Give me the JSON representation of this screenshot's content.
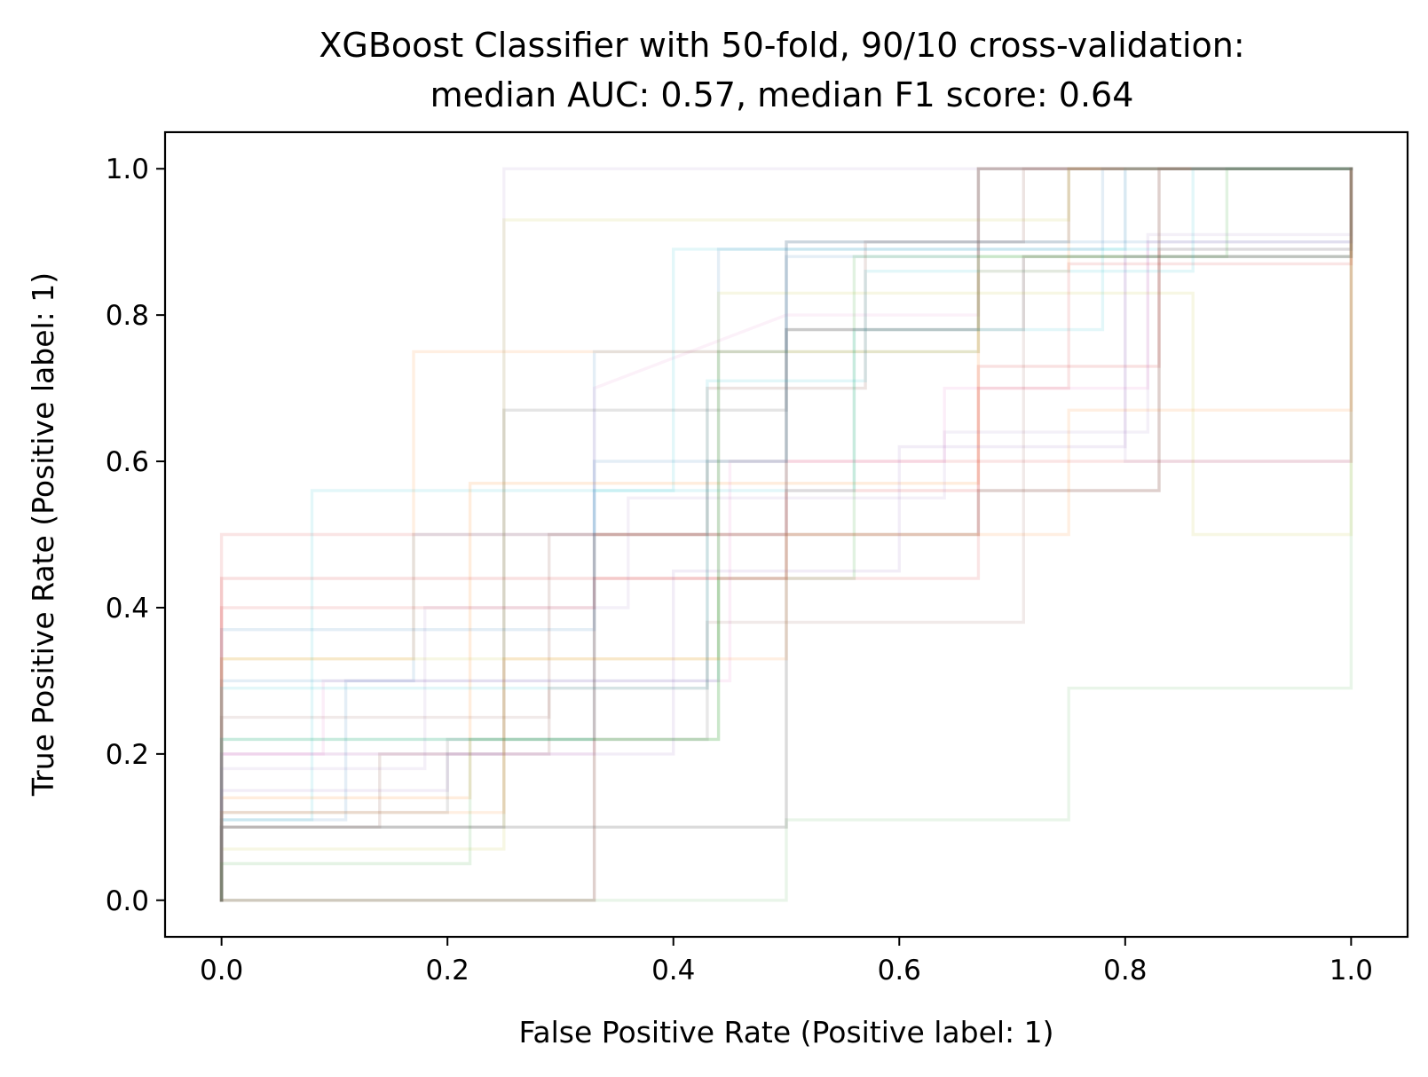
{
  "chart_data": {
    "type": "line",
    "title_lines": [
      "XGBoost Classifier with 50-fold, 90/10 cross-validation:",
      "median AUC: 0.57, median F1 score: 0.64"
    ],
    "xlabel": "False Positive Rate (Positive label: 1)",
    "ylabel": "True Positive Rate (Positive label: 1)",
    "xlim": [
      -0.05,
      1.05
    ],
    "ylim": [
      -0.05,
      1.05
    ],
    "xticks": [
      0.0,
      0.2,
      0.4,
      0.6,
      0.8,
      1.0
    ],
    "yticks": [
      0.0,
      0.2,
      0.4,
      0.6,
      0.8,
      1.0
    ],
    "xtick_labels": [
      "0.0",
      "0.2",
      "0.4",
      "0.6",
      "0.8",
      "1.0"
    ],
    "ytick_labels": [
      "0.0",
      "0.2",
      "0.4",
      "0.6",
      "0.8",
      "1.0"
    ],
    "grid": false,
    "legend": "none",
    "series": [
      {
        "color": "#1f77b4",
        "opacity": 0.12,
        "x": [
          0,
          0,
          0.17,
          0.17,
          0.33,
          0.33,
          0.5,
          0.5,
          0.67,
          0.67,
          1,
          1
        ],
        "y": [
          0,
          0.3,
          0.3,
          0.5,
          0.5,
          0.75,
          0.75,
          0.88,
          0.88,
          1,
          1,
          1
        ]
      },
      {
        "color": "#ff7f0e",
        "opacity": 0.12,
        "x": [
          0,
          0,
          0.17,
          0.17,
          0.2,
          0.2,
          0.67,
          0.67,
          0.75,
          0.75,
          1,
          1
        ],
        "y": [
          0,
          0.33,
          0.33,
          0.75,
          0.75,
          0.75,
          0.75,
          0.86,
          0.86,
          1,
          1,
          1
        ]
      },
      {
        "color": "#2ca02c",
        "opacity": 0.1,
        "x": [
          0,
          0,
          0.5,
          0.5,
          0.75,
          0.75,
          1,
          1
        ],
        "y": [
          0,
          0,
          0,
          0.11,
          0.11,
          0.29,
          0.29,
          1
        ]
      },
      {
        "color": "#d62728",
        "opacity": 0.12,
        "x": [
          0,
          0,
          0.17,
          0.17,
          0.33,
          0.33,
          0.5,
          0.5,
          1,
          1
        ],
        "y": [
          0,
          0.5,
          0.5,
          0.5,
          0.5,
          0.5,
          0.5,
          0.6,
          0.6,
          1
        ]
      },
      {
        "color": "#9467bd",
        "opacity": 0.1,
        "x": [
          0,
          0,
          0.25,
          0.25,
          0.5,
          0.5,
          0.8,
          0.8,
          1,
          1
        ],
        "y": [
          0,
          0.2,
          0.2,
          1,
          1,
          1,
          1,
          0.6,
          0.6,
          1
        ]
      },
      {
        "color": "#8c564b",
        "opacity": 0.16,
        "x": [
          0,
          0,
          0.14,
          0.14,
          0.29,
          0.29,
          0.43,
          0.43,
          0.57,
          0.57,
          0.71,
          0.71,
          1,
          1
        ],
        "y": [
          0,
          0.1,
          0.1,
          0.2,
          0.2,
          0.5,
          0.5,
          0.7,
          0.7,
          0.9,
          0.9,
          1,
          1,
          1
        ]
      },
      {
        "color": "#e377c2",
        "opacity": 0.1,
        "x": [
          0,
          0,
          0.33,
          0.33,
          0.5,
          0.5,
          0.67,
          0.67,
          1,
          1
        ],
        "y": [
          0,
          0.2,
          0.2,
          0.7,
          0.8,
          0.8,
          0.8,
          1,
          1,
          1
        ]
      },
      {
        "color": "#7f7f7f",
        "opacity": 0.2,
        "x": [
          0,
          0,
          0.25,
          0.25,
          0.5,
          0.5,
          0.75,
          0.75,
          1,
          1
        ],
        "y": [
          0,
          0.1,
          0.1,
          0.67,
          0.67,
          0.9,
          0.9,
          1,
          1,
          1
        ]
      },
      {
        "color": "#bcbd22",
        "opacity": 0.12,
        "x": [
          0,
          0,
          0.25,
          0.25,
          0.4,
          0.4,
          0.75,
          0.75,
          1,
          1
        ],
        "y": [
          0,
          0.07,
          0.07,
          0.93,
          0.93,
          0.93,
          0.93,
          1,
          1,
          1
        ]
      },
      {
        "color": "#17becf",
        "opacity": 0.12,
        "x": [
          0,
          0,
          0.08,
          0.08,
          0.2,
          0.2,
          0.4,
          0.4,
          0.6,
          0.6,
          0.8,
          0.8,
          1,
          1
        ],
        "y": [
          0,
          0.11,
          0.11,
          0.56,
          0.56,
          0.56,
          0.56,
          0.89,
          0.89,
          0.89,
          0.89,
          1,
          1,
          1
        ]
      },
      {
        "color": "#1f77b4",
        "opacity": 0.12,
        "x": [
          0,
          0,
          0.11,
          0.11,
          0.44,
          0.44,
          0.78,
          0.78,
          1,
          1
        ],
        "y": [
          0,
          0.11,
          0.11,
          0.3,
          0.3,
          0.89,
          0.89,
          1,
          1,
          1
        ]
      },
      {
        "color": "#ff7f0e",
        "opacity": 0.14,
        "x": [
          0,
          0,
          0.22,
          0.22,
          0.5,
          0.5,
          0.67,
          0.67,
          1,
          1
        ],
        "y": [
          0,
          0.14,
          0.14,
          0.57,
          0.57,
          0.57,
          0.57,
          1,
          1,
          1
        ]
      },
      {
        "color": "#2ca02c",
        "opacity": 0.14,
        "x": [
          0,
          0,
          0.22,
          0.22,
          0.44,
          0.44,
          0.56,
          0.56,
          0.89,
          0.89,
          1,
          1
        ],
        "y": [
          0,
          0.22,
          0.22,
          0.22,
          0.22,
          0.44,
          0.44,
          0.88,
          0.88,
          1,
          1,
          1
        ]
      },
      {
        "color": "#d62728",
        "opacity": 0.14,
        "x": [
          0,
          0,
          0.17,
          0.17,
          0.5,
          0.5,
          0.67,
          0.67,
          0.83,
          0.83,
          1,
          1
        ],
        "y": [
          0,
          0.44,
          0.44,
          0.44,
          0.44,
          0.56,
          0.56,
          0.73,
          0.73,
          0.89,
          0.89,
          1
        ]
      },
      {
        "color": "#9467bd",
        "opacity": 0.1,
        "x": [
          0,
          0,
          0.18,
          0.18,
          0.36,
          0.36,
          0.64,
          0.64,
          0.82,
          0.82,
          1,
          1
        ],
        "y": [
          0,
          0.18,
          0.18,
          0.4,
          0.4,
          0.55,
          0.55,
          0.64,
          0.64,
          0.91,
          0.91,
          1
        ]
      },
      {
        "color": "#8c564b",
        "opacity": 0.12,
        "x": [
          0,
          0,
          0.29,
          0.29,
          0.43,
          0.43,
          0.57,
          0.57,
          0.71,
          0.71,
          1,
          1
        ],
        "y": [
          0,
          0.25,
          0.25,
          0.29,
          0.29,
          0.38,
          0.38,
          0.38,
          0.38,
          0.88,
          0.88,
          1
        ]
      },
      {
        "color": "#e377c2",
        "opacity": 0.12,
        "x": [
          0,
          0,
          0.09,
          0.09,
          0.45,
          0.45,
          0.64,
          0.64,
          0.82,
          0.82,
          1,
          1
        ],
        "y": [
          0,
          0.2,
          0.2,
          0.3,
          0.3,
          0.6,
          0.6,
          0.7,
          0.7,
          0.9,
          0.9,
          1
        ]
      },
      {
        "color": "#7f7f7f",
        "opacity": 0.18,
        "x": [
          0,
          0,
          0.2,
          0.2,
          0.43,
          0.43,
          0.5,
          0.5,
          0.71,
          0.71,
          1,
          1
        ],
        "y": [
          0,
          0.12,
          0.12,
          0.22,
          0.22,
          0.6,
          0.6,
          0.78,
          0.78,
          0.88,
          0.88,
          1
        ]
      },
      {
        "color": "#bcbd22",
        "opacity": 0.12,
        "x": [
          0,
          0,
          0.29,
          0.29,
          0.44,
          0.44,
          0.67,
          0.67,
          0.86,
          0.86,
          1,
          1
        ],
        "y": [
          0,
          0.33,
          0.33,
          0.33,
          0.33,
          0.83,
          0.83,
          0.83,
          0.83,
          0.5,
          0.5,
          1
        ]
      },
      {
        "color": "#17becf",
        "opacity": 0.12,
        "x": [
          0,
          0,
          0.11,
          0.11,
          0.33,
          0.33,
          0.56,
          0.56,
          0.78,
          0.78,
          1,
          1
        ],
        "y": [
          0,
          0.22,
          0.22,
          0.22,
          0.22,
          0.56,
          0.56,
          0.78,
          0.78,
          0.89,
          0.89,
          1
        ]
      },
      {
        "color": "#8c564b",
        "opacity": 0.28,
        "x": [
          0,
          0,
          0.33,
          0.33,
          0.5,
          0.5,
          0.67,
          0.67,
          0.83,
          0.83,
          1,
          1
        ],
        "y": [
          0,
          0,
          0,
          0.5,
          0.5,
          0.5,
          0.5,
          0.56,
          0.56,
          1,
          1,
          1
        ]
      },
      {
        "color": "#7f7f7f",
        "opacity": 0.28,
        "x": [
          0,
          0,
          0.5,
          0.5,
          0.67,
          0.67,
          1,
          1
        ],
        "y": [
          0,
          0.1,
          0.1,
          0.78,
          0.78,
          1,
          1,
          1
        ]
      },
      {
        "color": "#1f77b4",
        "opacity": 0.12,
        "x": [
          0,
          0,
          0.33,
          0.33,
          0.5,
          0.5,
          0.75,
          0.75,
          1,
          1
        ],
        "y": [
          0,
          0.37,
          0.37,
          0.6,
          0.6,
          0.9,
          0.9,
          0.9,
          0.9,
          1
        ]
      },
      {
        "color": "#d62728",
        "opacity": 0.12,
        "x": [
          0,
          0,
          0.17,
          0.17,
          0.33,
          0.33,
          0.67,
          0.67,
          0.75,
          0.75,
          1,
          1
        ],
        "y": [
          0,
          0.4,
          0.4,
          0.4,
          0.4,
          0.44,
          0.44,
          0.7,
          0.7,
          0.87,
          0.87,
          1
        ]
      },
      {
        "color": "#9467bd",
        "opacity": 0.12,
        "x": [
          0,
          0,
          0.2,
          0.2,
          0.4,
          0.4,
          0.6,
          0.6,
          0.8,
          0.8,
          1,
          1
        ],
        "y": [
          0,
          0.15,
          0.15,
          0.2,
          0.2,
          0.45,
          0.45,
          0.62,
          0.62,
          0.88,
          0.88,
          1
        ]
      },
      {
        "color": "#2ca02c",
        "opacity": 0.12,
        "x": [
          0,
          0,
          0.22,
          0.22,
          0.44,
          0.44,
          0.67,
          0.67,
          1,
          1
        ],
        "y": [
          0,
          0.05,
          0.05,
          0.22,
          0.22,
          0.75,
          0.75,
          0.88,
          0.88,
          1
        ]
      },
      {
        "color": "#ff7f0e",
        "opacity": 0.12,
        "x": [
          0,
          0,
          0.25,
          0.25,
          0.5,
          0.5,
          0.75,
          0.75,
          1,
          1
        ],
        "y": [
          0,
          0.12,
          0.12,
          0.33,
          0.33,
          0.5,
          0.5,
          0.67,
          0.67,
          1
        ]
      },
      {
        "color": "#17becf",
        "opacity": 0.12,
        "x": [
          0,
          0,
          0.14,
          0.14,
          0.43,
          0.43,
          0.57,
          0.57,
          0.86,
          0.86,
          1,
          1
        ],
        "y": [
          0,
          0.29,
          0.29,
          0.29,
          0.29,
          0.71,
          0.71,
          0.86,
          0.86,
          1,
          1,
          1
        ]
      }
    ]
  }
}
